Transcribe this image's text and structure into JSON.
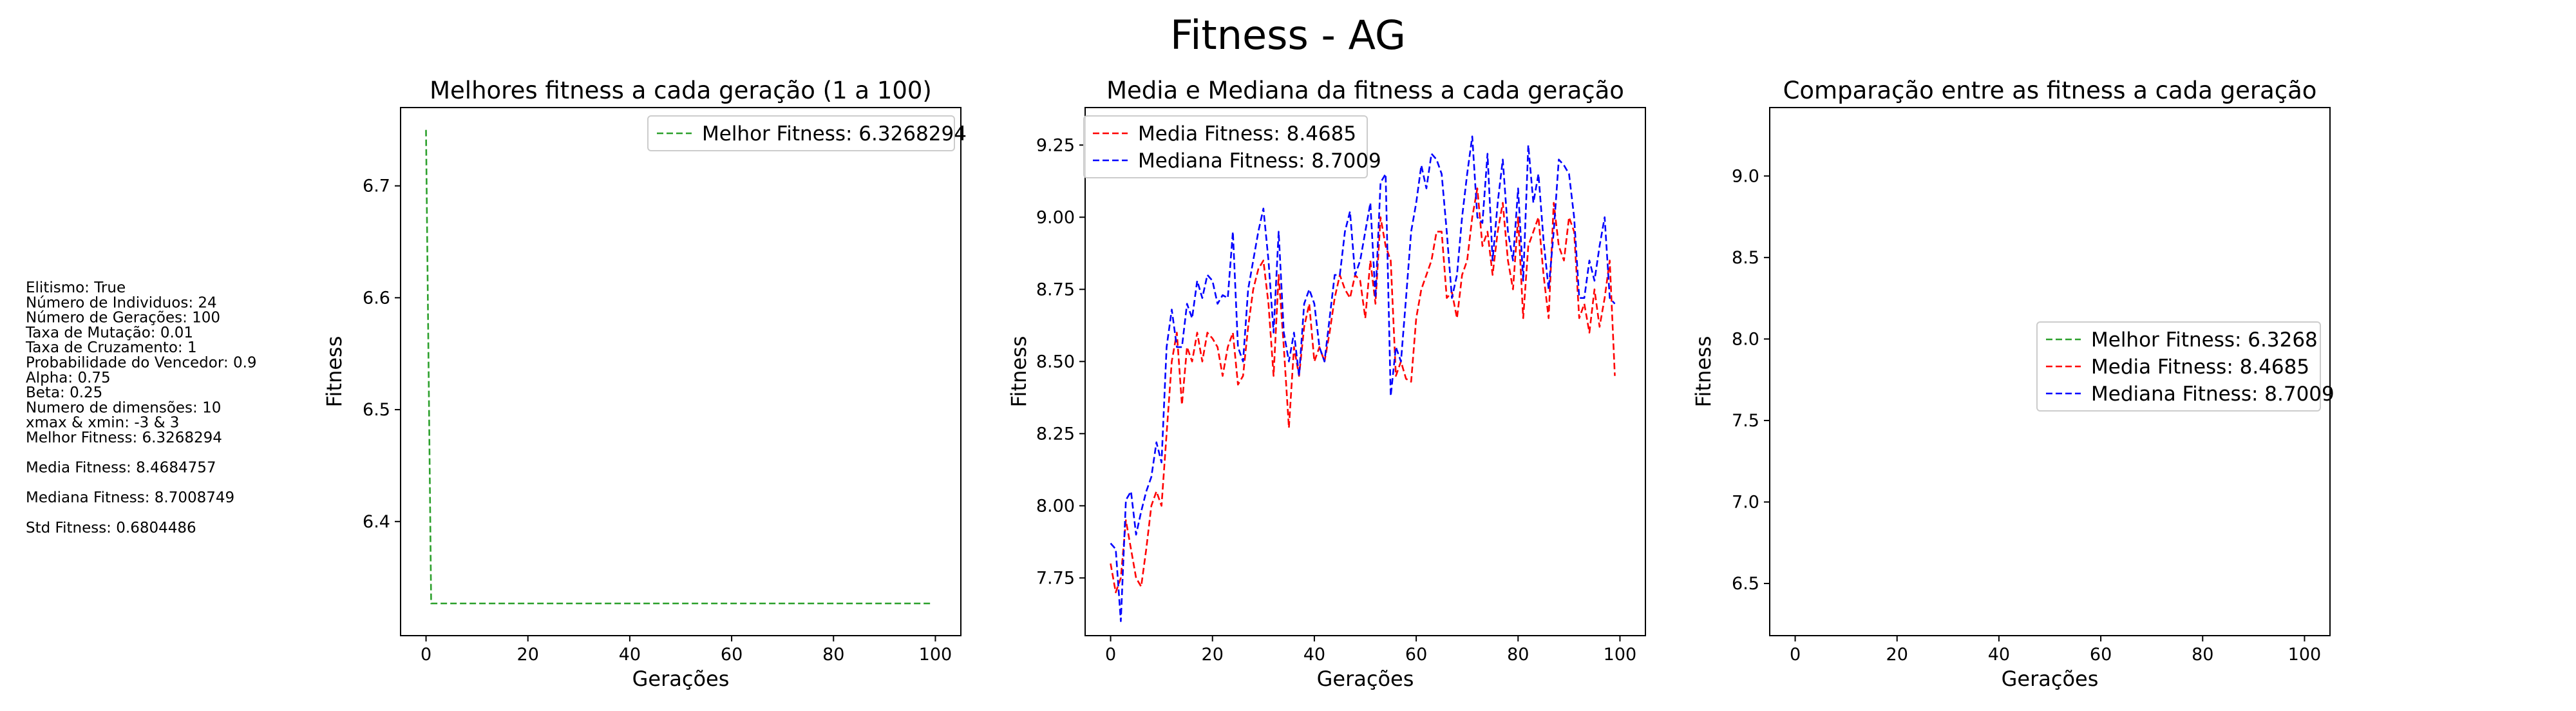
{
  "figure": {
    "title": "Fitness - AG",
    "params": [
      "Elitismo: True",
      "Número de Individuos: 24",
      "Número de Gerações: 100",
      "Taxa de Mutação: 0.01",
      "Taxa de Cruzamento: 1",
      "Probabilidade do Vencedor: 0.9",
      "Alpha: 0.75",
      "Beta: 0.25",
      "Numero de dimensões: 10",
      "xmax & xmin: -3 & 3",
      "Melhor Fitness: 6.3268294",
      "",
      "Media Fitness: 8.4684757",
      "",
      "Mediana Fitness: 8.7008749",
      "",
      "Std Fitness: 0.6804486"
    ]
  },
  "chart_data": [
    {
      "type": "line",
      "title": "Melhores fitness a cada geração (1 a 100)",
      "xlabel": "Gerações",
      "ylabel": "Fitness",
      "xlim": [
        -5,
        105
      ],
      "ylim": [
        6.298,
        6.77
      ],
      "xticks": [
        0,
        20,
        40,
        60,
        80,
        100
      ],
      "yticks": [
        6.4,
        6.5,
        6.6,
        6.7
      ],
      "legend_loc": "upper right",
      "series": [
        {
          "name": "Melhor Fitness: 6.3268294",
          "color": "#2ca02c",
          "dash": true,
          "y": [
            6.75,
            6.3268,
            6.3268,
            6.3268,
            6.3268,
            6.3268,
            6.3268,
            6.3268,
            6.3268,
            6.3268,
            6.3268,
            6.3268,
            6.3268,
            6.3268,
            6.3268,
            6.3268,
            6.3268,
            6.3268,
            6.3268,
            6.3268,
            6.3268,
            6.3268,
            6.3268,
            6.3268,
            6.3268,
            6.3268,
            6.3268,
            6.3268,
            6.3268,
            6.3268,
            6.3268,
            6.3268,
            6.3268,
            6.3268,
            6.3268,
            6.3268,
            6.3268,
            6.3268,
            6.3268,
            6.3268,
            6.3268,
            6.3268,
            6.3268,
            6.3268,
            6.3268,
            6.3268,
            6.3268,
            6.3268,
            6.3268,
            6.3268,
            6.3268,
            6.3268,
            6.3268,
            6.3268,
            6.3268,
            6.3268,
            6.3268,
            6.3268,
            6.3268,
            6.3268,
            6.3268,
            6.3268,
            6.3268,
            6.3268,
            6.3268,
            6.3268,
            6.3268,
            6.3268,
            6.3268,
            6.3268,
            6.3268,
            6.3268,
            6.3268,
            6.3268,
            6.3268,
            6.3268,
            6.3268,
            6.3268,
            6.3268,
            6.3268,
            6.3268,
            6.3268,
            6.3268,
            6.3268,
            6.3268,
            6.3268,
            6.3268,
            6.3268,
            6.3268,
            6.3268,
            6.3268,
            6.3268,
            6.3268,
            6.3268,
            6.3268,
            6.3268,
            6.3268,
            6.3268,
            6.3268,
            6.3268
          ]
        }
      ]
    },
    {
      "type": "line",
      "title": "Media e Mediana da fitness a cada geração",
      "xlabel": "Gerações",
      "ylabel": "Fitness",
      "xlim": [
        -5,
        105
      ],
      "ylim": [
        7.55,
        9.38
      ],
      "xticks": [
        0,
        20,
        40,
        60,
        80,
        100
      ],
      "yticks": [
        7.75,
        8.0,
        8.25,
        8.5,
        8.75,
        9.0,
        9.25
      ],
      "legend_loc": "upper left",
      "series": [
        {
          "name": "Media Fitness: 8.4685",
          "color": "#ff0000",
          "dash": true,
          "y": [
            7.8,
            7.7,
            7.75,
            7.95,
            7.85,
            7.75,
            7.72,
            7.85,
            8.0,
            8.05,
            8.0,
            8.25,
            8.5,
            8.6,
            8.35,
            8.55,
            8.5,
            8.6,
            8.5,
            8.6,
            8.58,
            8.55,
            8.45,
            8.55,
            8.6,
            8.42,
            8.45,
            8.62,
            8.75,
            8.82,
            8.85,
            8.7,
            8.45,
            8.8,
            8.55,
            8.27,
            8.55,
            8.45,
            8.62,
            8.7,
            8.5,
            8.55,
            8.5,
            8.6,
            8.72,
            8.8,
            8.75,
            8.72,
            8.8,
            8.78,
            8.65,
            8.85,
            8.7,
            9.0,
            8.9,
            8.85,
            8.45,
            8.5,
            8.44,
            8.43,
            8.65,
            8.75,
            8.8,
            8.85,
            8.95,
            8.95,
            8.72,
            8.74,
            8.65,
            8.8,
            8.85,
            9.0,
            9.1,
            8.9,
            8.95,
            8.8,
            8.95,
            9.05,
            8.85,
            8.75,
            9.0,
            8.65,
            8.9,
            8.95,
            9.0,
            8.8,
            8.65,
            9.05,
            8.9,
            8.85,
            9.0,
            8.95,
            8.65,
            8.7,
            8.6,
            8.75,
            8.62,
            8.72,
            8.85,
            8.45
          ]
        },
        {
          "name": "Mediana Fitness: 8.7009",
          "color": "#0000ff",
          "dash": true,
          "y": [
            7.87,
            7.85,
            7.6,
            8.02,
            8.05,
            7.9,
            7.98,
            8.05,
            8.1,
            8.22,
            8.15,
            8.55,
            8.68,
            8.55,
            8.55,
            8.7,
            8.65,
            8.78,
            8.72,
            8.8,
            8.78,
            8.7,
            8.73,
            8.72,
            8.95,
            8.55,
            8.5,
            8.75,
            8.85,
            8.95,
            9.03,
            8.85,
            8.6,
            8.95,
            8.6,
            8.5,
            8.6,
            8.45,
            8.7,
            8.75,
            8.7,
            8.55,
            8.5,
            8.65,
            8.8,
            8.8,
            8.95,
            9.02,
            8.8,
            8.85,
            8.95,
            9.05,
            8.72,
            9.12,
            9.15,
            8.38,
            8.55,
            8.5,
            8.72,
            8.95,
            9.05,
            9.18,
            9.1,
            9.22,
            9.2,
            9.15,
            8.95,
            8.72,
            8.8,
            9.0,
            9.15,
            9.28,
            9.0,
            8.98,
            9.22,
            8.85,
            9.05,
            9.2,
            8.95,
            8.85,
            9.1,
            8.78,
            9.25,
            9.05,
            9.15,
            8.92,
            8.75,
            8.95,
            9.2,
            9.18,
            9.15,
            9.0,
            8.72,
            8.72,
            8.85,
            8.78,
            8.9,
            9.0,
            8.72,
            8.7
          ]
        }
      ]
    },
    {
      "type": "line",
      "title": "Comparação entre as fitness a cada geração",
      "xlabel": "Gerações",
      "ylabel": "Fitness",
      "xlim": [
        -5,
        105
      ],
      "ylim": [
        6.18,
        9.42
      ],
      "xticks": [
        0,
        20,
        40,
        60,
        80,
        100
      ],
      "yticks": [
        6.5,
        7.0,
        7.5,
        8.0,
        8.5,
        9.0
      ],
      "legend_loc": "center right",
      "series": [
        {
          "name": "Melhor Fitness: 6.3268",
          "color": "#2ca02c",
          "dash": true,
          "ref": "0.0"
        },
        {
          "name": "Media Fitness: 8.4685",
          "color": "#ff0000",
          "dash": true,
          "ref": "1.0"
        },
        {
          "name": "Mediana Fitness: 8.7009",
          "color": "#0000ff",
          "dash": true,
          "ref": "1.1"
        }
      ]
    }
  ]
}
